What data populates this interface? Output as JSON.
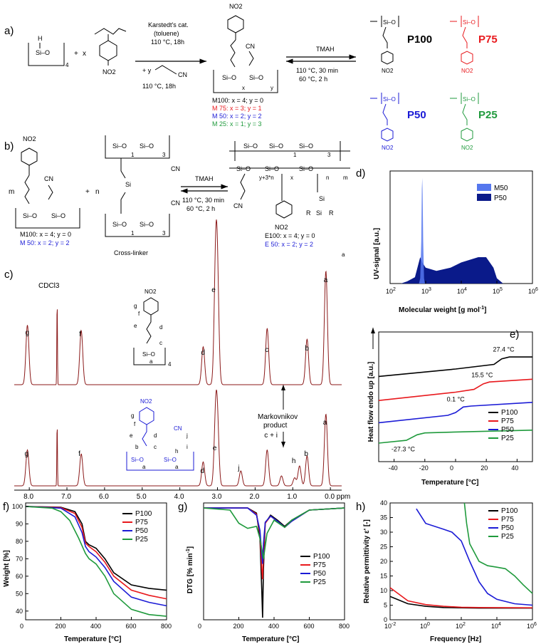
{
  "panels": {
    "a": {
      "label": "a)",
      "reagents": {
        "catalyst": "Karstedt's cat.",
        "solvent": "(toluene)",
        "step1": "110 °C, 18h",
        "plus_y": "+ y",
        "step2": "110 °C, 18h",
        "x": "x",
        "plus": "+",
        "ring_sub": "4",
        "cn": "CN",
        "no2": "NO2",
        "si_o": "Si–O",
        "h": "H",
        "ring_x": "x",
        "ring_y": "y"
      },
      "tmah": "TMAH",
      "cond1": "110 °C, 30 min",
      "cond2": "60 °C, 2 h",
      "monomers": [
        {
          "text": "M100: x = 4; y = 0",
          "color": "#000000"
        },
        {
          "text": "M  75: x = 3; y = 1",
          "color": "#e8191d"
        },
        {
          "text": "M  50: x = 2; y = 2",
          "color": "#1b1bd6"
        },
        {
          "text": "M  25: x = 1; y = 3",
          "color": "#1f9a3c"
        }
      ],
      "polymers": [
        {
          "name": "P100",
          "color": "#000000"
        },
        {
          "name": "P75",
          "color": "#e8191d"
        },
        {
          "name": "P50",
          "color": "#1b1bd6"
        },
        {
          "name": "P25",
          "color": "#1f9a3c"
        }
      ]
    },
    "b": {
      "label": "b)",
      "m": "m",
      "n": "n",
      "plus": "+",
      "tmah": "TMAH",
      "cond1": "110 °C, 30 min",
      "cond2": "60 °C, 2 h",
      "crosslinker": "Cross-linker",
      "monomers": [
        {
          "text": "M100: x = 4; y = 0",
          "color": "#000000"
        },
        {
          "text": "M  50: x = 2; y = 2",
          "color": "#1b1bd6"
        }
      ],
      "elastomers": [
        {
          "text": "E100: x = 4; y = 0",
          "color": "#000000"
        },
        {
          "text": "E  50: x = 2; y = 2",
          "color": "#1b1bd6"
        }
      ],
      "sub_labels": {
        "one": "1",
        "three": "3",
        "yn": "y+3*n",
        "xx": "x",
        "nn": "n",
        "mm": "m",
        "r": "R",
        "si": "Si",
        "a": "a"
      }
    },
    "c": {
      "label": "c)",
      "solvent": "CDCl3",
      "markovnikov_1": "Markovnikov",
      "markovnikov_2": "product",
      "axis_ticks": [
        "8.0",
        "7.0",
        "6.0",
        "5.0",
        "4.0",
        "3.0",
        "2.0",
        "1.0",
        "0.0 ppm"
      ],
      "top_peaks": [
        "g",
        "f",
        "d",
        "e",
        "c",
        "b",
        "a"
      ],
      "bottom_peaks": [
        "g",
        "f",
        "d",
        "e",
        "j",
        "c + i",
        "h",
        "b",
        "a"
      ],
      "struct_top": [
        "a",
        "b",
        "c",
        "d",
        "e",
        "f",
        "g"
      ],
      "struct_bottom": [
        "a",
        "b",
        "c",
        "d",
        "e",
        "f",
        "g",
        "h",
        "i",
        "j"
      ]
    },
    "d": {
      "label": "d)",
      "ylabel": "UV-signal [a.u.]",
      "xlabel": "Molecular weight [g mol",
      "xlabel_sup": "-1",
      "xlabel_end": "]",
      "legend": [
        {
          "name": "M50",
          "color": "#5577ee"
        },
        {
          "name": "P50",
          "color": "#0a1a8a"
        }
      ],
      "ticks": [
        "10",
        "10",
        "10",
        "10",
        "10"
      ],
      "tick_exp": [
        "2",
        "3",
        "4",
        "5",
        "6"
      ]
    },
    "e": {
      "label": "e)",
      "ylabel": "Heat flow endo up [a.u.]",
      "xlabel": "Temperature [°C]",
      "annotations": [
        "27.4 °C",
        "15.5 °C",
        "0.1 °C",
        "-27.3 °C"
      ],
      "legend": [
        "P100",
        "P75",
        "P50",
        "P25"
      ],
      "xticks": [
        "-40",
        "-20",
        "0",
        "20",
        "40"
      ]
    },
    "f": {
      "label": "f)",
      "ylabel": "Weight [%]",
      "xlabel": "Temperature [°C]",
      "legend": [
        "P100",
        "P75",
        "P50",
        "P25"
      ],
      "xticks": [
        "0",
        "200",
        "400",
        "600",
        "800"
      ],
      "yticks": [
        "40",
        "50",
        "60",
        "70",
        "80",
        "90",
        "100"
      ]
    },
    "g": {
      "label": "g)",
      "ylabel": "DTG [% min",
      "ylabel_sup": "-1",
      "ylabel_end": "]",
      "xlabel": "Temperature [°C]",
      "legend": [
        "P100",
        "P75",
        "P50",
        "P25"
      ],
      "xticks": [
        "0",
        "200",
        "400",
        "600",
        "800"
      ]
    },
    "h": {
      "label": "h)",
      "ylabel": "Relative permittivity ε' [-]",
      "xlabel": "Frequency [Hz]",
      "legend": [
        "P100",
        "P75",
        "P50",
        "P25"
      ],
      "xticks": [
        "10",
        "10",
        "10",
        "10",
        "10"
      ],
      "xtick_exp": [
        "-2",
        "0",
        "2",
        "4",
        "6"
      ],
      "yticks": [
        "0",
        "5",
        "10",
        "15",
        "20",
        "25",
        "30",
        "35",
        "40"
      ]
    }
  },
  "chart_data": [
    {
      "panel": "d",
      "type": "area",
      "title": "",
      "xlabel": "Molecular weight [g mol-1]",
      "ylabel": "UV-signal [a.u.]",
      "xscale": "log",
      "xlim": [
        100,
        1000000
      ],
      "ylim": [
        0,
        1
      ],
      "series": [
        {
          "name": "M50",
          "x": [
            650,
            700,
            750,
            780,
            800,
            820,
            850,
            900,
            950
          ],
          "y": [
            0,
            0.05,
            0.4,
            0.9,
            1.0,
            0.85,
            0.4,
            0.05,
            0
          ]
        },
        {
          "name": "P50",
          "x": [
            200,
            300,
            500,
            700,
            800,
            1000,
            2000,
            5000,
            10000,
            30000,
            50000,
            80000,
            100000,
            150000
          ],
          "y": [
            0,
            0.02,
            0.06,
            0.25,
            0.2,
            0.15,
            0.12,
            0.15,
            0.2,
            0.25,
            0.25,
            0.15,
            0.05,
            0
          ]
        }
      ]
    },
    {
      "panel": "e",
      "type": "line",
      "xlabel": "Temperature [°C]",
      "ylabel": "Heat flow endo up [a.u.]",
      "xlim": [
        -50,
        50
      ],
      "series": [
        {
          "name": "P100",
          "color": "#000000",
          "x": [
            -50,
            0,
            25,
            30,
            35,
            50
          ],
          "y": [
            4.6,
            5.0,
            5.25,
            5.55,
            5.65,
            5.65
          ]
        },
        {
          "name": "P75",
          "color": "#e8191d",
          "x": [
            -50,
            0,
            12,
            18,
            22,
            50
          ],
          "y": [
            3.3,
            3.75,
            3.9,
            4.2,
            4.3,
            4.45
          ]
        },
        {
          "name": "P50",
          "color": "#1b1bd6",
          "x": [
            -50,
            -5,
            0,
            5,
            10,
            50
          ],
          "y": [
            2.1,
            2.5,
            2.65,
            2.95,
            3.0,
            3.2
          ]
        },
        {
          "name": "P25",
          "color": "#1f9a3c",
          "x": [
            -50,
            -32,
            -25,
            -20,
            0,
            50
          ],
          "y": [
            1.0,
            1.15,
            1.45,
            1.55,
            1.6,
            1.7
          ]
        }
      ]
    },
    {
      "panel": "f",
      "type": "line",
      "xlabel": "Temperature [°C]",
      "ylabel": "Weight [%]",
      "xlim": [
        0,
        800
      ],
      "ylim": [
        35,
        102
      ],
      "series": [
        {
          "name": "P100",
          "color": "#000000",
          "x": [
            0,
            200,
            280,
            320,
            340,
            360,
            400,
            450,
            500,
            600,
            700,
            800
          ],
          "y": [
            100,
            99.5,
            97,
            90,
            80,
            78,
            76,
            70,
            62,
            55,
            53,
            52
          ]
        },
        {
          "name": "P75",
          "color": "#e8191d",
          "x": [
            0,
            200,
            280,
            320,
            340,
            360,
            400,
            450,
            500,
            600,
            700,
            800
          ],
          "y": [
            100,
            99.3,
            96,
            88,
            79,
            77,
            74,
            68,
            60,
            52,
            49,
            47
          ]
        },
        {
          "name": "P50",
          "color": "#1b1bd6",
          "x": [
            0,
            200,
            280,
            320,
            340,
            360,
            400,
            450,
            500,
            600,
            700,
            800
          ],
          "y": [
            100,
            99,
            94,
            85,
            77,
            74,
            71,
            65,
            57,
            48,
            45,
            43
          ]
        },
        {
          "name": "P25",
          "color": "#1f9a3c",
          "x": [
            0,
            150,
            200,
            250,
            300,
            340,
            360,
            400,
            450,
            500,
            600,
            700,
            800
          ],
          "y": [
            100,
            99,
            97,
            92,
            82,
            73,
            70,
            67,
            60,
            50,
            41,
            38,
            37
          ]
        }
      ]
    },
    {
      "panel": "g",
      "type": "line",
      "xlabel": "Temperature [°C]",
      "ylabel": "DTG [% min-1]",
      "xlim": [
        0,
        800
      ],
      "ylim": [
        -11,
        0.5
      ],
      "series": [
        {
          "name": "P100",
          "color": "#000000",
          "x": [
            0,
            250,
            300,
            320,
            330,
            335,
            340,
            350,
            380,
            420,
            460,
            500,
            600,
            800
          ],
          "y": [
            0,
            0,
            -0.5,
            -3,
            -8,
            -10.8,
            -6,
            -1.5,
            -0.7,
            -1.2,
            -1.8,
            -1.2,
            -0.2,
            0
          ]
        },
        {
          "name": "P75",
          "color": "#e8191d",
          "x": [
            0,
            250,
            300,
            320,
            330,
            335,
            340,
            350,
            380,
            420,
            460,
            500,
            600,
            800
          ],
          "y": [
            0,
            0,
            -0.6,
            -2.5,
            -6,
            -7,
            -4.5,
            -1.5,
            -0.8,
            -1.3,
            -1.9,
            -1.3,
            -0.2,
            0
          ]
        },
        {
          "name": "P50",
          "color": "#1b1bd6",
          "x": [
            0,
            250,
            300,
            320,
            330,
            335,
            340,
            350,
            380,
            420,
            460,
            500,
            600,
            800
          ],
          "y": [
            0,
            0,
            -0.7,
            -2.2,
            -4.5,
            -5.5,
            -3.5,
            -1.4,
            -0.8,
            -1.3,
            -1.9,
            -1.3,
            -0.2,
            0
          ]
        },
        {
          "name": "P25",
          "color": "#1f9a3c",
          "x": [
            0,
            150,
            200,
            250,
            300,
            320,
            340,
            360,
            400,
            460,
            500,
            600,
            800
          ],
          "y": [
            0,
            -0.2,
            -1.5,
            -2.0,
            -1.8,
            -3,
            -5,
            -2.5,
            -1.2,
            -1.9,
            -1.2,
            -0.2,
            0
          ]
        }
      ]
    },
    {
      "panel": "h",
      "type": "line",
      "xlabel": "Frequency [Hz]",
      "ylabel": "Relative permittivity ε' [-]",
      "xscale": "log",
      "xlim": [
        0.01,
        1000000
      ],
      "ylim": [
        0,
        40
      ],
      "series": [
        {
          "name": "P100",
          "color": "#000000",
          "x": [
            0.01,
            0.1,
            1,
            10,
            100,
            1000,
            1000000
          ],
          "y": [
            8,
            5.5,
            4.6,
            4.2,
            4.1,
            4.0,
            4.0
          ]
        },
        {
          "name": "P75",
          "color": "#e8191d",
          "x": [
            0.01,
            0.1,
            1,
            10,
            100,
            1000,
            1000000
          ],
          "y": [
            11,
            6.5,
            5.2,
            4.6,
            4.3,
            4.2,
            4.1
          ]
        },
        {
          "name": "P50",
          "color": "#1b1bd6",
          "x": [
            0.3,
            1,
            10,
            30,
            100,
            300,
            1000,
            3000,
            10000,
            100000,
            1000000
          ],
          "y": [
            38,
            33,
            31,
            30,
            27,
            20,
            13,
            9,
            7,
            5.5,
            5
          ]
        },
        {
          "name": "P25",
          "color": "#1f9a3c",
          "x": [
            150,
            200,
            300,
            1000,
            3000,
            10000,
            30000,
            100000,
            300000,
            1000000
          ],
          "y": [
            40,
            33,
            26,
            20,
            18.5,
            18,
            17.5,
            15,
            12,
            9
          ]
        }
      ]
    }
  ]
}
